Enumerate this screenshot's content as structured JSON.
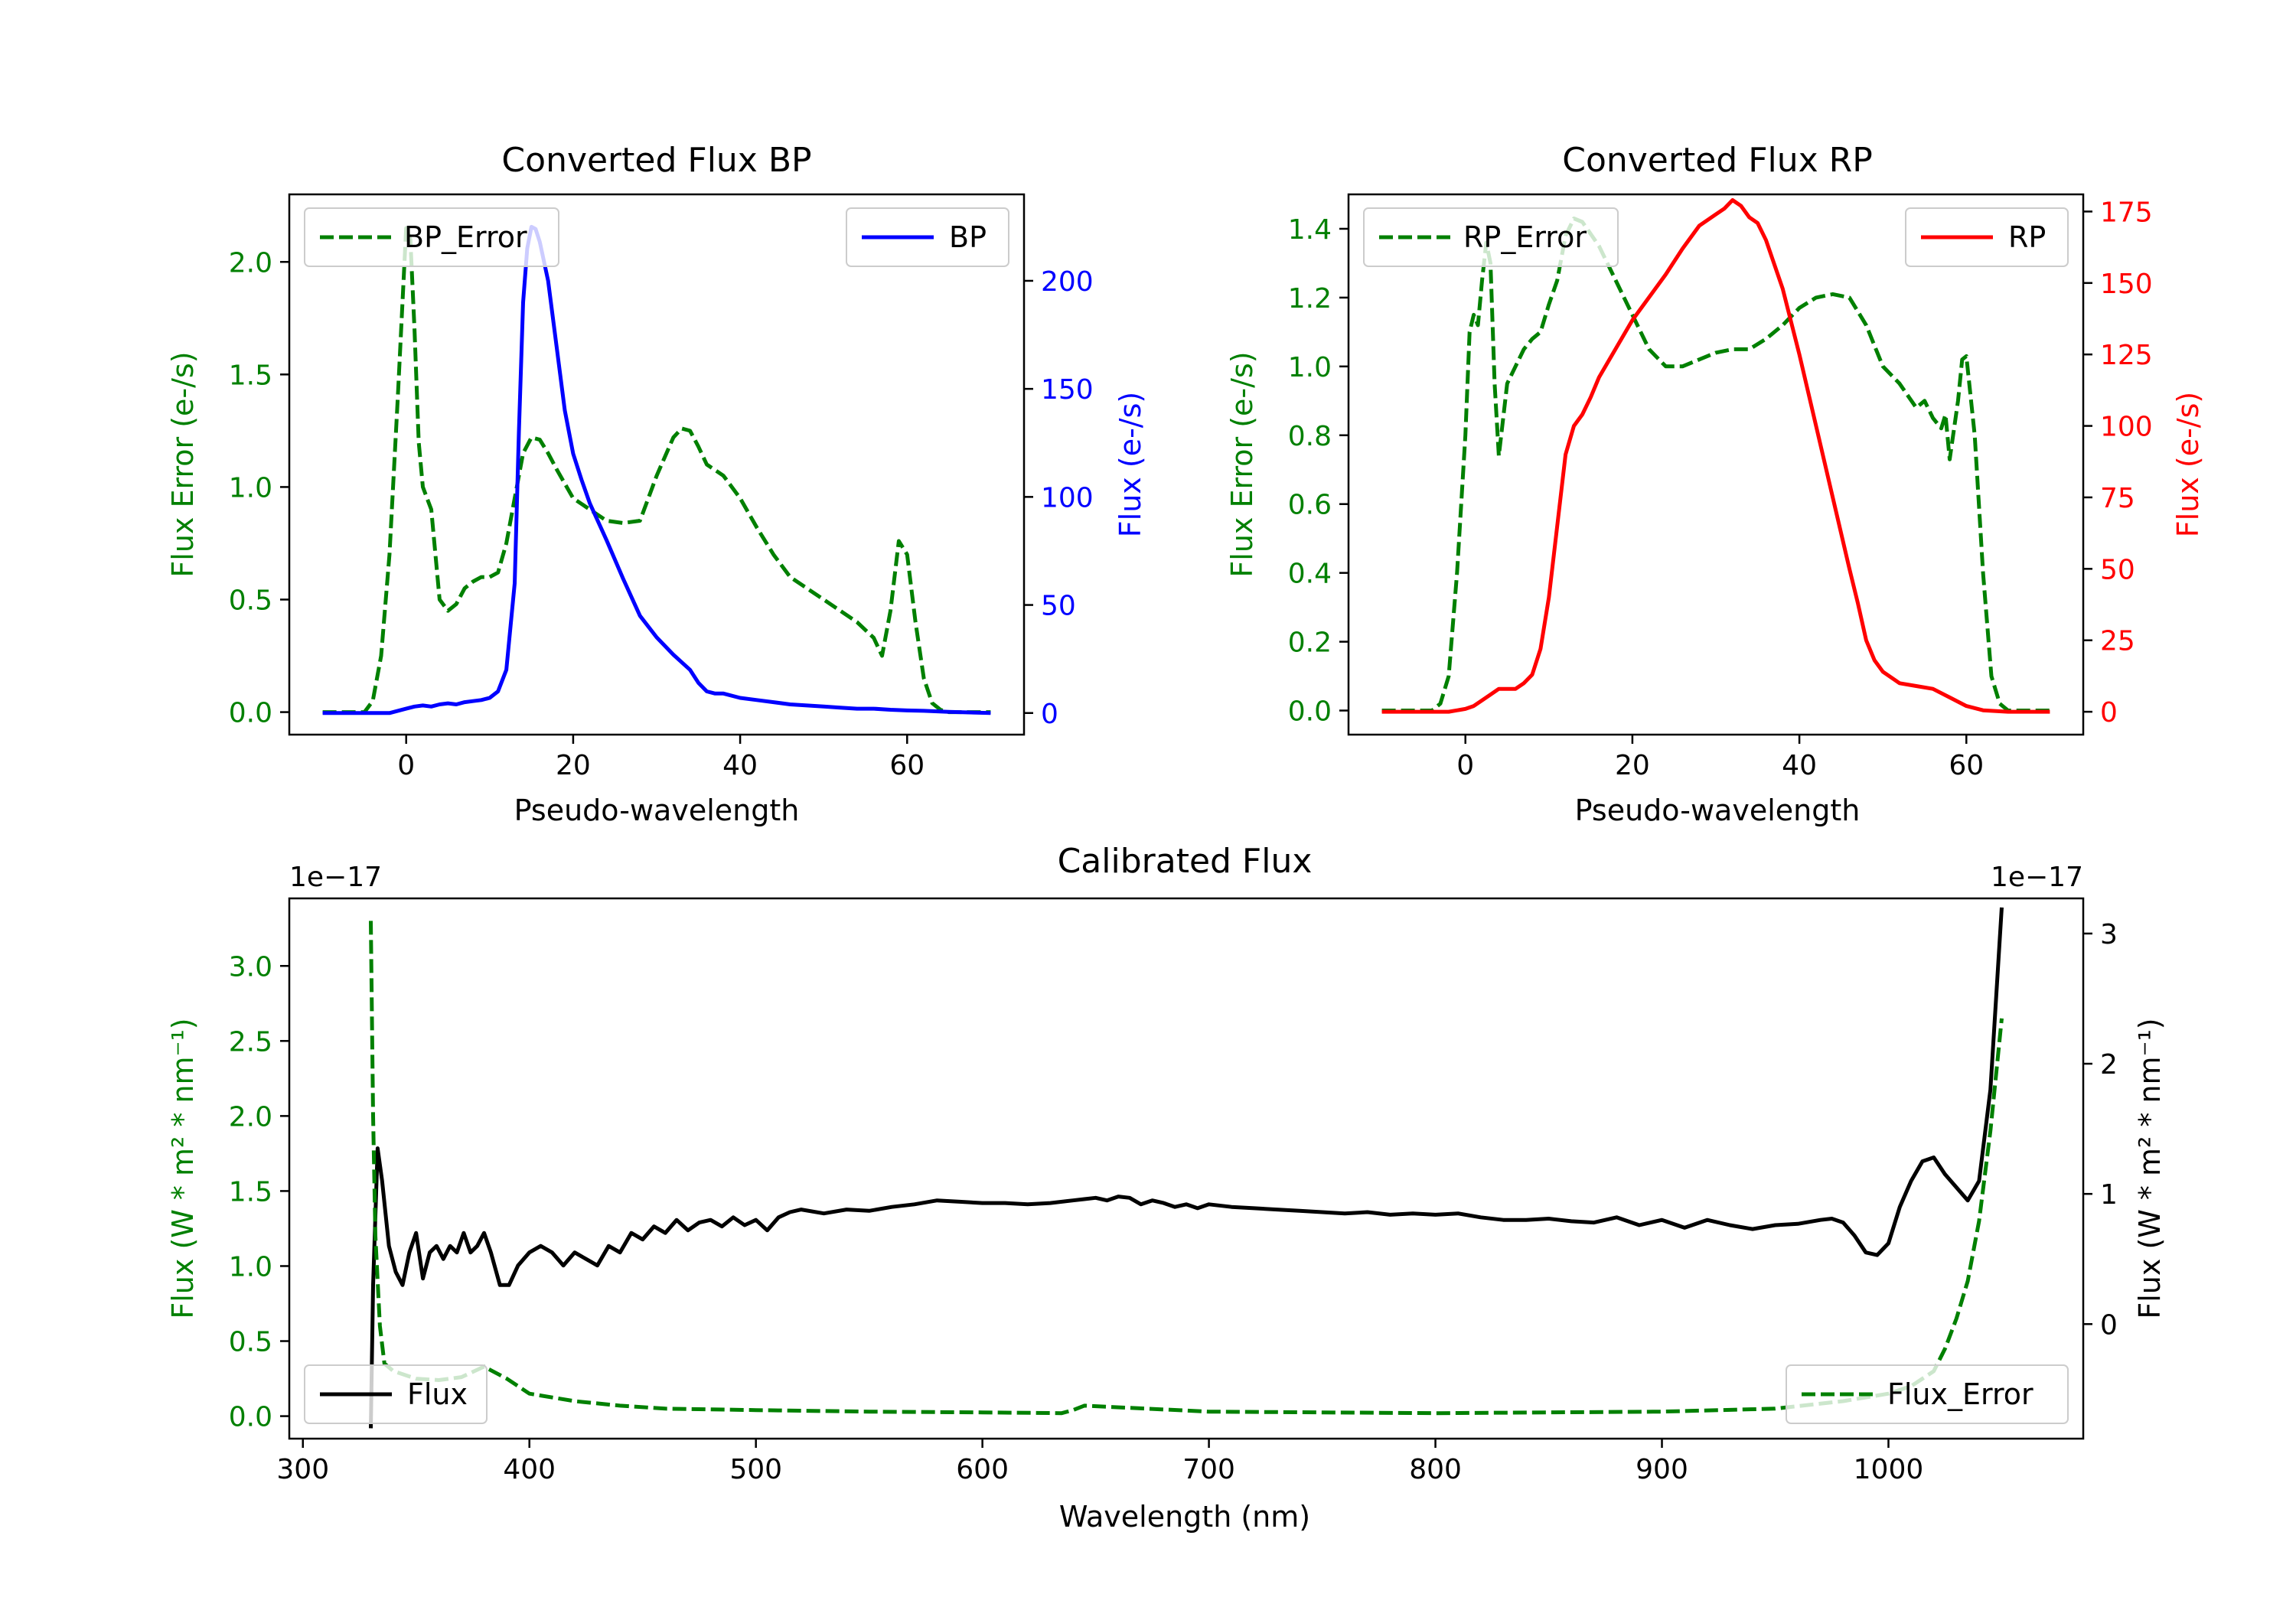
{
  "colors": {
    "error": "#008000",
    "bp": "#0000ff",
    "rp": "#ff0000",
    "flux": "#000000",
    "axis": "#000000"
  },
  "chart_data": [
    {
      "id": "bp",
      "type": "line",
      "title": "Converted Flux BP",
      "xlabel": "Pseudo-wavelength",
      "ylabel_left": "Flux Error (e-/s)",
      "ylabel_right": "Flux (e-/s)",
      "xlim": [
        -14,
        74
      ],
      "ylim_left": [
        -0.1,
        2.3
      ],
      "ylim_right": [
        -10,
        240
      ],
      "xticks": [
        0,
        20,
        40,
        60
      ],
      "xtick_labels": [
        "0",
        "20",
        "40",
        "60"
      ],
      "yticks_left": [
        0.0,
        0.5,
        1.0,
        1.5,
        2.0
      ],
      "ytick_labels_left": [
        "0.0",
        "0.5",
        "1.0",
        "1.5",
        "2.0"
      ],
      "yticks_right": [
        0,
        50,
        100,
        150,
        200
      ],
      "ytick_labels_right": [
        "0",
        "50",
        "100",
        "150",
        "200"
      ],
      "legend_left": {
        "label": "BP_Error",
        "location": "upper left"
      },
      "legend_right": {
        "label": "BP",
        "location": "upper right"
      },
      "series": [
        {
          "name": "BP_Error",
          "axis": "left",
          "style": "dashed",
          "color": "#008000",
          "x": [
            -10,
            -5,
            -4,
            -3,
            -2,
            -1,
            0,
            0.5,
            1,
            1.5,
            2,
            3,
            4,
            5,
            6,
            7,
            8,
            9,
            10,
            11,
            12,
            13,
            14,
            15,
            16,
            17,
            18,
            20,
            22,
            24,
            26,
            28,
            30,
            32,
            33,
            34,
            35,
            36,
            38,
            40,
            42,
            44,
            46,
            48,
            50,
            52,
            54,
            56,
            57,
            58,
            59,
            60,
            61,
            62,
            63,
            64,
            65,
            70
          ],
          "y": [
            0,
            0,
            0.05,
            0.25,
            0.7,
            1.4,
            2.15,
            2.1,
            1.7,
            1.2,
            1.0,
            0.9,
            0.5,
            0.45,
            0.48,
            0.55,
            0.58,
            0.6,
            0.6,
            0.62,
            0.75,
            0.95,
            1.15,
            1.22,
            1.21,
            1.15,
            1.08,
            0.95,
            0.9,
            0.85,
            0.84,
            0.85,
            1.05,
            1.22,
            1.26,
            1.25,
            1.18,
            1.1,
            1.05,
            0.95,
            0.82,
            0.7,
            0.6,
            0.55,
            0.5,
            0.45,
            0.4,
            0.33,
            0.25,
            0.45,
            0.76,
            0.7,
            0.4,
            0.15,
            0.04,
            0.01,
            0,
            0
          ]
        },
        {
          "name": "BP",
          "axis": "right",
          "style": "solid",
          "color": "#0000ff",
          "x": [
            -10,
            -5,
            -2,
            0,
            1,
            2,
            3,
            4,
            5,
            6,
            7,
            8,
            9,
            10,
            11,
            12,
            13,
            13.5,
            14,
            14.5,
            15,
            15.5,
            16,
            17,
            18,
            19,
            20,
            21,
            22,
            24,
            26,
            28,
            30,
            32,
            34,
            35,
            36,
            37,
            38,
            40,
            42,
            44,
            46,
            48,
            50,
            52,
            54,
            56,
            58,
            60,
            62,
            65,
            70
          ],
          "y": [
            0,
            0,
            0,
            2,
            3,
            3.5,
            3,
            4,
            4.5,
            4,
            5,
            5.5,
            6,
            7,
            10,
            20,
            60,
            130,
            190,
            215,
            225,
            224,
            218,
            200,
            170,
            140,
            120,
            108,
            97,
            80,
            62,
            45,
            35,
            27,
            20,
            14,
            10,
            9,
            9,
            7,
            6,
            5,
            4,
            3.5,
            3,
            2.5,
            2,
            2,
            1.5,
            1.2,
            1,
            0.5,
            0
          ]
        }
      ]
    },
    {
      "id": "rp",
      "type": "line",
      "title": "Converted Flux RP",
      "xlabel": "Pseudo-wavelength",
      "ylabel_left": "Flux Error (e-/s)",
      "ylabel_right": "Flux (e-/s)",
      "xlim": [
        -14,
        74
      ],
      "ylim_left": [
        -0.07,
        1.5
      ],
      "ylim_right": [
        -8,
        181
      ],
      "xticks": [
        0,
        20,
        40,
        60
      ],
      "xtick_labels": [
        "0",
        "20",
        "40",
        "60"
      ],
      "yticks_left": [
        0.0,
        0.2,
        0.4,
        0.6,
        0.8,
        1.0,
        1.2,
        1.4
      ],
      "ytick_labels_left": [
        "0.0",
        "0.2",
        "0.4",
        "0.6",
        "0.8",
        "1.0",
        "1.2",
        "1.4"
      ],
      "yticks_right": [
        0,
        25,
        50,
        75,
        100,
        125,
        150,
        175
      ],
      "ytick_labels_right": [
        "0",
        "25",
        "50",
        "75",
        "100",
        "125",
        "150",
        "175"
      ],
      "legend_left": {
        "label": "RP_Error",
        "location": "upper left"
      },
      "legend_right": {
        "label": "RP",
        "location": "upper right"
      },
      "series": [
        {
          "name": "RP_Error",
          "axis": "left",
          "style": "dashed",
          "color": "#008000",
          "x": [
            -10,
            -4,
            -3,
            -2,
            -1,
            0,
            0.5,
            1,
            1.5,
            2,
            2.5,
            3,
            3.5,
            4,
            5,
            6,
            7,
            8,
            9,
            10,
            11,
            12,
            13,
            14,
            16,
            18,
            20,
            22,
            24,
            26,
            28,
            30,
            32,
            34,
            36,
            38,
            40,
            42,
            44,
            46,
            48,
            50,
            52,
            54,
            55,
            56,
            57,
            57.5,
            58,
            59,
            59.5,
            60,
            61,
            62,
            63,
            64,
            65,
            70
          ],
          "y": [
            0,
            0,
            0.02,
            0.1,
            0.4,
            0.8,
            1.1,
            1.15,
            1.12,
            1.25,
            1.36,
            1.3,
            0.95,
            0.74,
            0.95,
            1.0,
            1.05,
            1.08,
            1.1,
            1.18,
            1.25,
            1.38,
            1.43,
            1.42,
            1.35,
            1.25,
            1.15,
            1.05,
            1.0,
            1.0,
            1.02,
            1.04,
            1.05,
            1.05,
            1.08,
            1.12,
            1.17,
            1.2,
            1.21,
            1.2,
            1.12,
            1.0,
            0.95,
            0.88,
            0.9,
            0.85,
            0.82,
            0.86,
            0.73,
            0.9,
            1.02,
            1.03,
            0.8,
            0.4,
            0.1,
            0.02,
            0,
            0
          ]
        },
        {
          "name": "RP",
          "axis": "right",
          "style": "solid",
          "color": "#ff0000",
          "x": [
            -10,
            -2,
            0,
            1,
            2,
            3,
            4,
            5,
            6,
            7,
            8,
            9,
            10,
            11,
            12,
            13,
            14,
            15,
            16,
            18,
            20,
            22,
            24,
            26,
            28,
            30,
            31,
            32,
            33,
            34,
            35,
            36,
            38,
            40,
            42,
            44,
            46,
            47,
            48,
            49,
            50,
            52,
            54,
            56,
            58,
            60,
            62,
            65,
            70
          ],
          "y": [
            0,
            0,
            1,
            2,
            4,
            6,
            8,
            8,
            8,
            10,
            13,
            22,
            40,
            65,
            90,
            100,
            104,
            110,
            117,
            127,
            137,
            145,
            153,
            162,
            170,
            174,
            176,
            179,
            177,
            173,
            171,
            165,
            148,
            125,
            100,
            75,
            50,
            38,
            25,
            18,
            14,
            10,
            9,
            8,
            5,
            2,
            0.5,
            0,
            0
          ]
        }
      ]
    },
    {
      "id": "cal",
      "type": "line",
      "title": "Calibrated Flux",
      "xlabel": "Wavelength (nm)",
      "ylabel_left": "Flux (W * m² * nm⁻¹)",
      "ylabel_right": "Flux (W * m² * nm⁻¹)",
      "offset_left": "1e−17",
      "offset_right": "1e−17",
      "xlim": [
        294,
        1086
      ],
      "ylim_left": [
        -0.15,
        3.45
      ],
      "ylim_right": [
        -0.88,
        3.27
      ],
      "xticks": [
        300,
        400,
        500,
        600,
        700,
        800,
        900,
        1000
      ],
      "xtick_labels": [
        "300",
        "400",
        "500",
        "600",
        "700",
        "800",
        "900",
        "1000"
      ],
      "yticks_left": [
        0.0,
        0.5,
        1.0,
        1.5,
        2.0,
        2.5,
        3.0
      ],
      "ytick_labels_left": [
        "0.0",
        "0.5",
        "1.0",
        "1.5",
        "2.0",
        "2.5",
        "3.0"
      ],
      "yticks_right": [
        0,
        1,
        2,
        3
      ],
      "ytick_labels_right": [
        "0",
        "1",
        "2",
        "3"
      ],
      "legend_left": {
        "label": "Flux",
        "location": "lower left"
      },
      "legend_right": {
        "label": "Flux_Error",
        "location": "lower right"
      },
      "series": [
        {
          "name": "Flux_Error",
          "axis": "left",
          "style": "dashed",
          "color": "#008000",
          "x": [
            330,
            331,
            332,
            334,
            336,
            340,
            350,
            360,
            370,
            380,
            390,
            400,
            420,
            440,
            460,
            500,
            550,
            600,
            635,
            640,
            645,
            700,
            750,
            800,
            850,
            900,
            950,
            980,
            1000,
            1010,
            1020,
            1025,
            1030,
            1035,
            1040,
            1045,
            1050
          ],
          "y": [
            3.3,
            2.0,
            1.2,
            0.6,
            0.35,
            0.3,
            0.25,
            0.24,
            0.26,
            0.33,
            0.25,
            0.15,
            0.1,
            0.07,
            0.05,
            0.04,
            0.03,
            0.025,
            0.02,
            0.04,
            0.07,
            0.03,
            0.025,
            0.02,
            0.025,
            0.03,
            0.05,
            0.1,
            0.15,
            0.2,
            0.3,
            0.45,
            0.65,
            0.9,
            1.3,
            1.9,
            2.65
          ]
        },
        {
          "name": "Flux",
          "axis": "right",
          "style": "solid",
          "color": "#000000",
          "x": [
            330,
            331,
            333,
            335,
            338,
            341,
            344,
            347,
            350,
            353,
            356,
            359,
            362,
            365,
            368,
            371,
            374,
            377,
            380,
            383,
            387,
            391,
            395,
            400,
            405,
            410,
            415,
            420,
            425,
            430,
            435,
            440,
            445,
            450,
            455,
            460,
            465,
            470,
            475,
            480,
            485,
            490,
            495,
            500,
            505,
            510,
            515,
            520,
            530,
            540,
            550,
            560,
            570,
            580,
            590,
            600,
            610,
            620,
            630,
            640,
            645,
            650,
            655,
            660,
            665,
            670,
            675,
            680,
            685,
            690,
            695,
            700,
            710,
            720,
            730,
            740,
            750,
            760,
            770,
            780,
            790,
            800,
            810,
            820,
            830,
            840,
            850,
            860,
            870,
            880,
            890,
            900,
            910,
            920,
            930,
            940,
            950,
            960,
            970,
            975,
            980,
            985,
            990,
            995,
            1000,
            1005,
            1010,
            1015,
            1020,
            1025,
            1030,
            1035,
            1040,
            1045,
            1050
          ],
          "y": [
            -0.8,
            0.3,
            1.35,
            1.1,
            0.6,
            0.4,
            0.3,
            0.55,
            0.7,
            0.35,
            0.55,
            0.6,
            0.5,
            0.6,
            0.55,
            0.7,
            0.55,
            0.6,
            0.7,
            0.55,
            0.3,
            0.3,
            0.45,
            0.55,
            0.6,
            0.55,
            0.45,
            0.55,
            0.5,
            0.45,
            0.6,
            0.55,
            0.7,
            0.65,
            0.75,
            0.7,
            0.8,
            0.72,
            0.78,
            0.8,
            0.75,
            0.82,
            0.76,
            0.8,
            0.72,
            0.82,
            0.86,
            0.88,
            0.85,
            0.88,
            0.87,
            0.9,
            0.92,
            0.95,
            0.94,
            0.93,
            0.93,
            0.92,
            0.93,
            0.95,
            0.96,
            0.97,
            0.95,
            0.98,
            0.97,
            0.92,
            0.95,
            0.93,
            0.9,
            0.92,
            0.89,
            0.92,
            0.9,
            0.89,
            0.88,
            0.87,
            0.86,
            0.85,
            0.86,
            0.84,
            0.85,
            0.84,
            0.85,
            0.82,
            0.8,
            0.8,
            0.81,
            0.79,
            0.78,
            0.82,
            0.76,
            0.8,
            0.74,
            0.8,
            0.76,
            0.73,
            0.76,
            0.77,
            0.8,
            0.81,
            0.78,
            0.68,
            0.55,
            0.53,
            0.62,
            0.9,
            1.1,
            1.25,
            1.28,
            1.15,
            1.05,
            0.95,
            1.1,
            1.8,
            3.2
          ]
        }
      ]
    }
  ]
}
